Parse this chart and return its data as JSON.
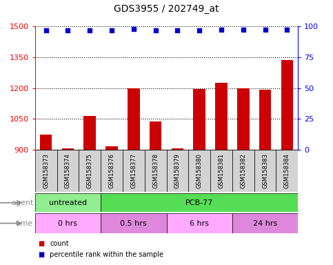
{
  "title": "GDS3955 / 202749_at",
  "samples": [
    "GSM158373",
    "GSM158374",
    "GSM158375",
    "GSM158376",
    "GSM158377",
    "GSM158378",
    "GSM158379",
    "GSM158380",
    "GSM158381",
    "GSM158382",
    "GSM158383",
    "GSM158384"
  ],
  "counts": [
    975,
    905,
    1065,
    915,
    1200,
    1038,
    908,
    1195,
    1225,
    1198,
    1193,
    1338
  ],
  "percentile_ranks": [
    97,
    97,
    97,
    97,
    98,
    97,
    97,
    97,
    97.5,
    97.5,
    97.5,
    97.5
  ],
  "bar_color": "#cc0000",
  "dot_color": "#0000cc",
  "ylim_left": [
    900,
    1500
  ],
  "ylim_right": [
    0,
    100
  ],
  "yticks_left": [
    900,
    1050,
    1200,
    1350,
    1500
  ],
  "yticks_right": [
    0,
    25,
    50,
    75,
    100
  ],
  "agent_groups": [
    {
      "label": "untreated",
      "start": 0,
      "end": 3,
      "color": "#90ee90"
    },
    {
      "label": "PCB-77",
      "start": 3,
      "end": 12,
      "color": "#55dd55"
    }
  ],
  "time_groups": [
    {
      "label": "0 hrs",
      "start": 0,
      "end": 3,
      "color": "#ffaaff"
    },
    {
      "label": "0.5 hrs",
      "start": 3,
      "end": 6,
      "color": "#dd88dd"
    },
    {
      "label": "6 hrs",
      "start": 6,
      "end": 9,
      "color": "#ffaaff"
    },
    {
      "label": "24 hrs",
      "start": 9,
      "end": 12,
      "color": "#dd88dd"
    }
  ],
  "bg_color": "#d3d3d3"
}
